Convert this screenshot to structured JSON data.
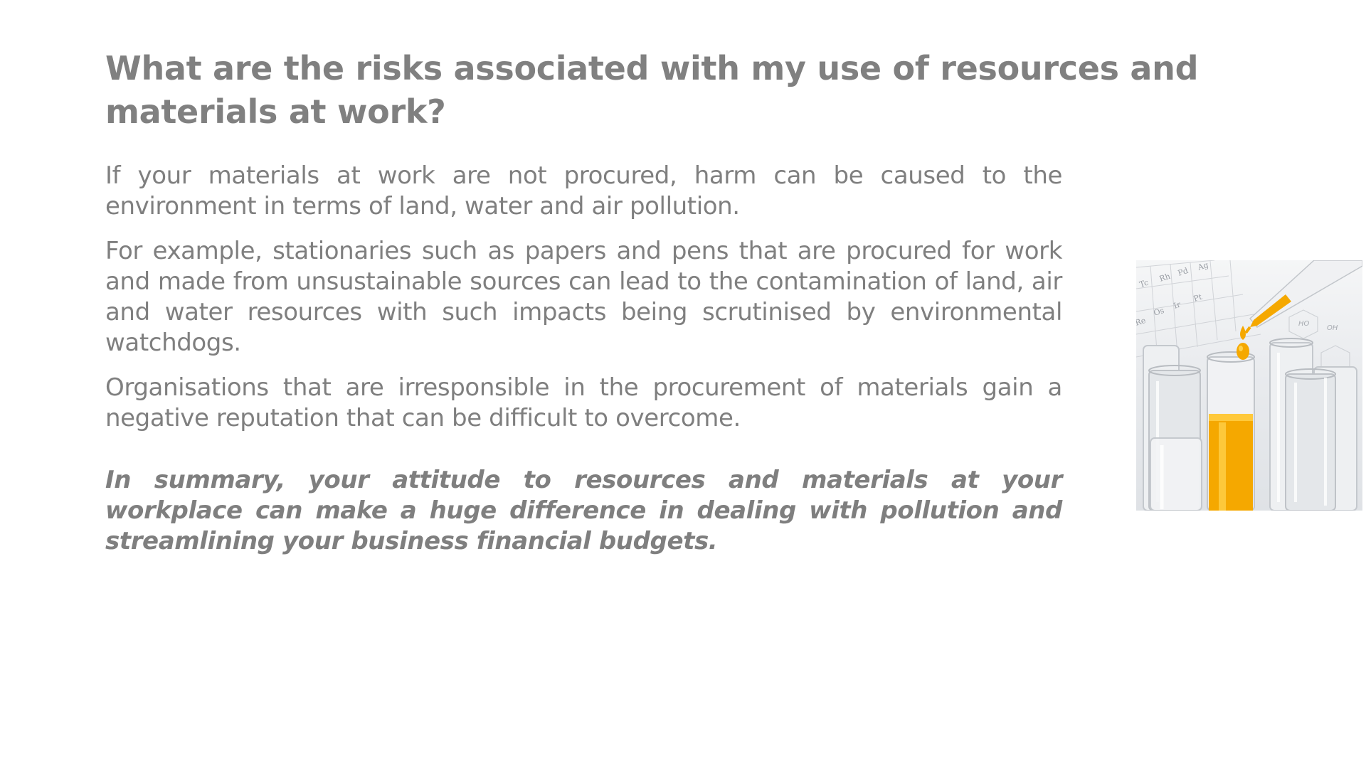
{
  "slide": {
    "title": "What are the risks associated with my use of resources and materials at work?",
    "paragraphs": [
      "If your materials at work are not procured, harm can be caused to the environment in terms of land, water and air pollution.",
      "For example, stationaries such as papers and pens that are procured for work and made from unsustainable sources can lead to the contamination of land, air and water resources with such impacts being scrutinised by environmental watchdogs.",
      "Organisations that are irresponsible in the procurement of materials gain a negative reputation that can be difficult to overcome."
    ],
    "summary": "In summary, your attitude to resources and materials at your workplace can make a huge difference in dealing with pollution and streamlining your business financial budgets."
  },
  "image": {
    "icon": "laboratory-test-tubes-image",
    "colors": {
      "liquid": "#f5a800",
      "liquid_light": "#ffd04a",
      "glass": "#d9dde2",
      "text": "#7f7f7f"
    }
  }
}
